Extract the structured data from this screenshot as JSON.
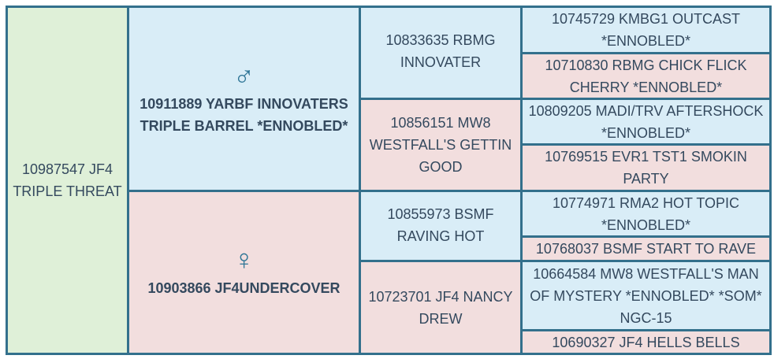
{
  "colors": {
    "border": "#33708c",
    "subject": "#dff0d8",
    "male": "#d9edf7",
    "female": "#f2dede",
    "text": "#34495e"
  },
  "subject": {
    "name": "10987547 JF4 TRIPLE THREAT"
  },
  "sire": {
    "symbol": "♂",
    "icon": "male-icon",
    "name": "10911889 YARBF INNOVATERS TRIPLE BARREL *ENNOBLED*"
  },
  "dam": {
    "symbol": "♀",
    "icon": "female-icon",
    "name": "10903866 JF4UNDERCOVER"
  },
  "grandparents": [
    {
      "name": "10833635 RBMG INNOVATER"
    },
    {
      "name": "10856151 MW8 WESTFALL'S GETTIN GOOD"
    },
    {
      "name": "10855973 BSMF RAVING HOT"
    },
    {
      "name": "10723701 JF4 NANCY DREW"
    }
  ],
  "great_grandparents": [
    {
      "name": "10745729 KMBG1 OUTCAST *ENNOBLED*"
    },
    {
      "name": "10710830 RBMG CHICK FLICK CHERRY *ENNOBLED*"
    },
    {
      "name": "10809205 MADI/TRV AFTERSHOCK *ENNOBLED*"
    },
    {
      "name": "10769515 EVR1 TST1 SMOKIN PARTY"
    },
    {
      "name": "10774971 RMA2 HOT TOPIC *ENNOBLED*"
    },
    {
      "name": "10768037 BSMF START TO RAVE"
    },
    {
      "name": "10664584 MW8 WESTFALL'S MAN OF MYSTERY *ENNOBLED* *SOM* NGC-15"
    },
    {
      "name": "10690327 JF4 HELLS BELLS"
    }
  ]
}
